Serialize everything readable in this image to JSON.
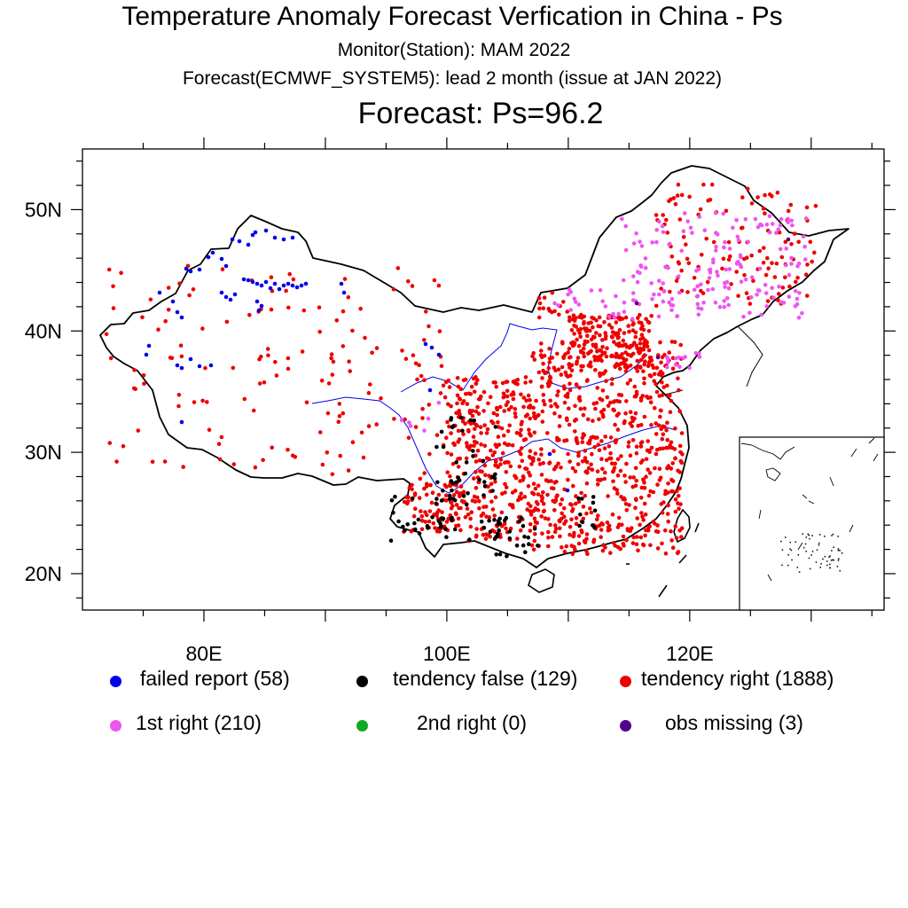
{
  "title": "Temperature Anomaly Forecast Verfication in China -  Ps",
  "subtitle1": "Monitor(Station): MAM 2022",
  "subtitle2": "Forecast(ECMWF_SYSTEM5): lead 2 month (issue at JAN 2022)",
  "panel_title": "Forecast: Ps=96.2",
  "map": {
    "lon_range": [
      70,
      136
    ],
    "lat_range": [
      17,
      55
    ],
    "x_ticks": [
      {
        "lon": 80,
        "label": "80E"
      },
      {
        "lon": 100,
        "label": "100E"
      },
      {
        "lon": 120,
        "label": "120E"
      }
    ],
    "y_ticks": [
      {
        "lat": 20,
        "label": "20N"
      },
      {
        "lat": 30,
        "label": "30N"
      },
      {
        "lat": 40,
        "label": "40N"
      },
      {
        "lat": 50,
        "label": "50N"
      }
    ]
  },
  "legend": [
    {
      "key": "failed",
      "label": "failed report (58)",
      "color": "#0000ee"
    },
    {
      "key": "false",
      "label": "tendency false (129)",
      "color": "#000000"
    },
    {
      "key": "right",
      "label": "tendency right (1888)",
      "color": "#ee0000"
    },
    {
      "key": "first",
      "label": "1st right (210)",
      "color": "#ee55ee"
    },
    {
      "key": "second",
      "label": "2nd right (0)",
      "color": "#11aa22"
    },
    {
      "key": "missing",
      "label": "obs missing (3)",
      "color": "#550088"
    }
  ],
  "river_color": "#0000ee"
}
